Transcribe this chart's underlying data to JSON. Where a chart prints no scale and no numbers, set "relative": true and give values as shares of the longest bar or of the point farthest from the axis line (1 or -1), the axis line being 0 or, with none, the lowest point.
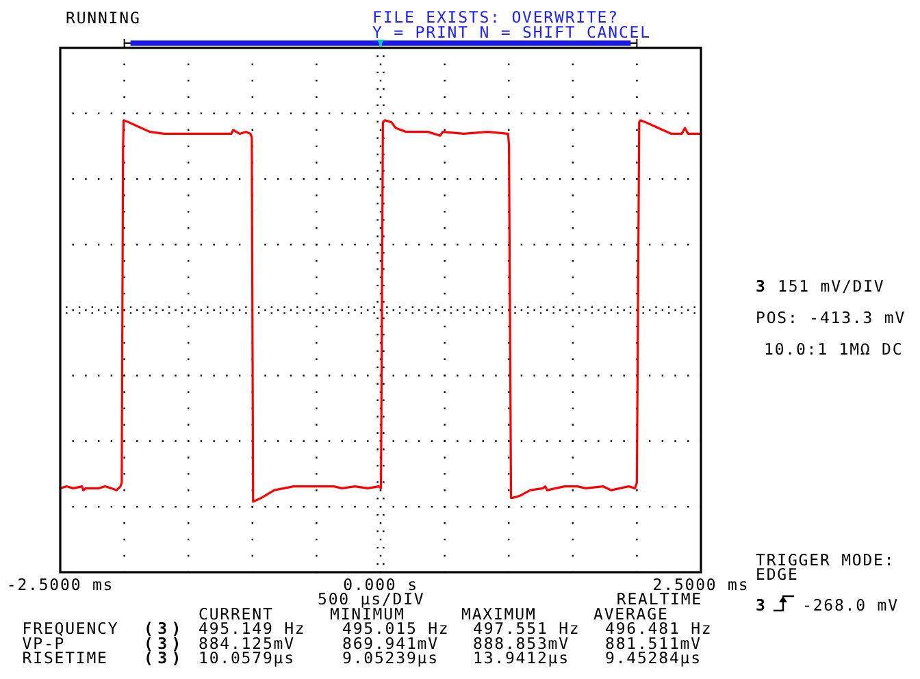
{
  "chart_data": {
    "type": "line",
    "relative": true,
    "x": [
      -2.5,
      -2.45,
      -2.4,
      -2.33,
      -2.32,
      -2.3,
      -2.2,
      -2.15,
      -2.1,
      -2.06,
      -2.03,
      -2.02,
      -2.01,
      -2.005,
      -1.965,
      -1.9,
      -1.8,
      -1.69,
      -1.5,
      -1.165,
      -1.15,
      -1.1,
      -1.05,
      -1.015,
      -1.005,
      -0.995,
      -0.93,
      -0.83,
      -0.68,
      -0.365,
      -0.3,
      -0.2,
      -0.1,
      -0.015,
      0.003,
      0.018,
      0.035,
      0.085,
      0.118,
      0.2,
      0.27,
      0.37,
      0.465,
      0.485,
      0.65,
      0.835,
      0.995,
      1.002,
      1.018,
      1.03,
      1.085,
      1.168,
      1.268,
      1.285,
      1.3,
      1.435,
      1.535,
      1.6,
      1.735,
      1.8,
      1.935,
      1.985,
      2.0,
      2.018,
      2.028,
      2.068,
      2.135,
      2.2,
      2.27,
      2.35,
      2.375,
      2.4,
      2.5
    ],
    "series": [
      {
        "color": "#ff0000",
        "values": [
          -0.93,
          -0.92,
          -0.93,
          -0.92,
          -0.94,
          -0.93,
          -0.93,
          -0.92,
          -0.93,
          -0.94,
          -0.92,
          -0.9,
          0.84,
          0.99,
          0.98,
          0.96,
          0.93,
          0.92,
          0.92,
          0.92,
          0.94,
          0.92,
          0.93,
          0.92,
          0.9,
          -1.0,
          -0.98,
          -0.94,
          -0.92,
          -0.92,
          -0.93,
          -0.92,
          -0.93,
          -0.92,
          -0.93,
          0.98,
          0.99,
          0.98,
          0.95,
          0.93,
          0.93,
          0.93,
          0.91,
          0.93,
          0.92,
          0.93,
          0.92,
          0.86,
          -0.98,
          -0.98,
          -0.97,
          -0.94,
          -0.93,
          -0.92,
          -0.94,
          -0.92,
          -0.92,
          -0.93,
          -0.92,
          -0.94,
          -0.92,
          -0.93,
          -0.9,
          0.98,
          0.99,
          0.98,
          0.96,
          0.94,
          0.92,
          0.92,
          0.95,
          0.92,
          0.92
        ]
      }
    ],
    "xlim": [
      -2.5,
      2.5
    ],
    "xticks": [
      {
        "value": -2.5,
        "label": "-2.5000 ms"
      },
      {
        "value": -2,
        "label": null
      },
      {
        "value": -1.5,
        "label": null
      },
      {
        "value": -1,
        "label": null
      },
      {
        "value": -0.5,
        "label": null
      },
      {
        "value": 0,
        "label": "0.000 s"
      },
      {
        "value": 0.5,
        "label": null
      },
      {
        "value": 1,
        "label": null
      },
      {
        "value": 1.5,
        "label": null
      },
      {
        "value": 2,
        "label": null
      },
      {
        "value": 2.5,
        "label": "2.5000 ms"
      }
    ],
    "grid": true,
    "line_style": "solid",
    "annotations": [
      "RUNNING",
      "FILE EXISTS: OVERWRITE?",
      "Y = PRINT N = SHIFT CANCEL",
      "3",
      "151 mV/DIV",
      "POS: -413.3 mV",
      "10.0:1 1MΩ DC",
      "500 µs/DIV",
      "REALTIME",
      "CURRENT",
      "MINIMUM",
      "MAXIMUM",
      "AVERAGE",
      "FREQUENCY",
      "(3)",
      "495.149 Hz",
      "495.015 Hz",
      "497.551 Hz",
      "496.481 Hz",
      "VP-P",
      "(3)",
      "884.125mV",
      "869.941mV",
      "888.853mV",
      "881.511mV",
      "RISETIME",
      "(3)",
      "10.0579µs",
      "9.05239µs",
      "13.9412µs",
      "9.45284µs",
      "TRIGGER MODE:",
      "EDGE",
      "3",
      "-268.0 mV"
    ]
  }
}
